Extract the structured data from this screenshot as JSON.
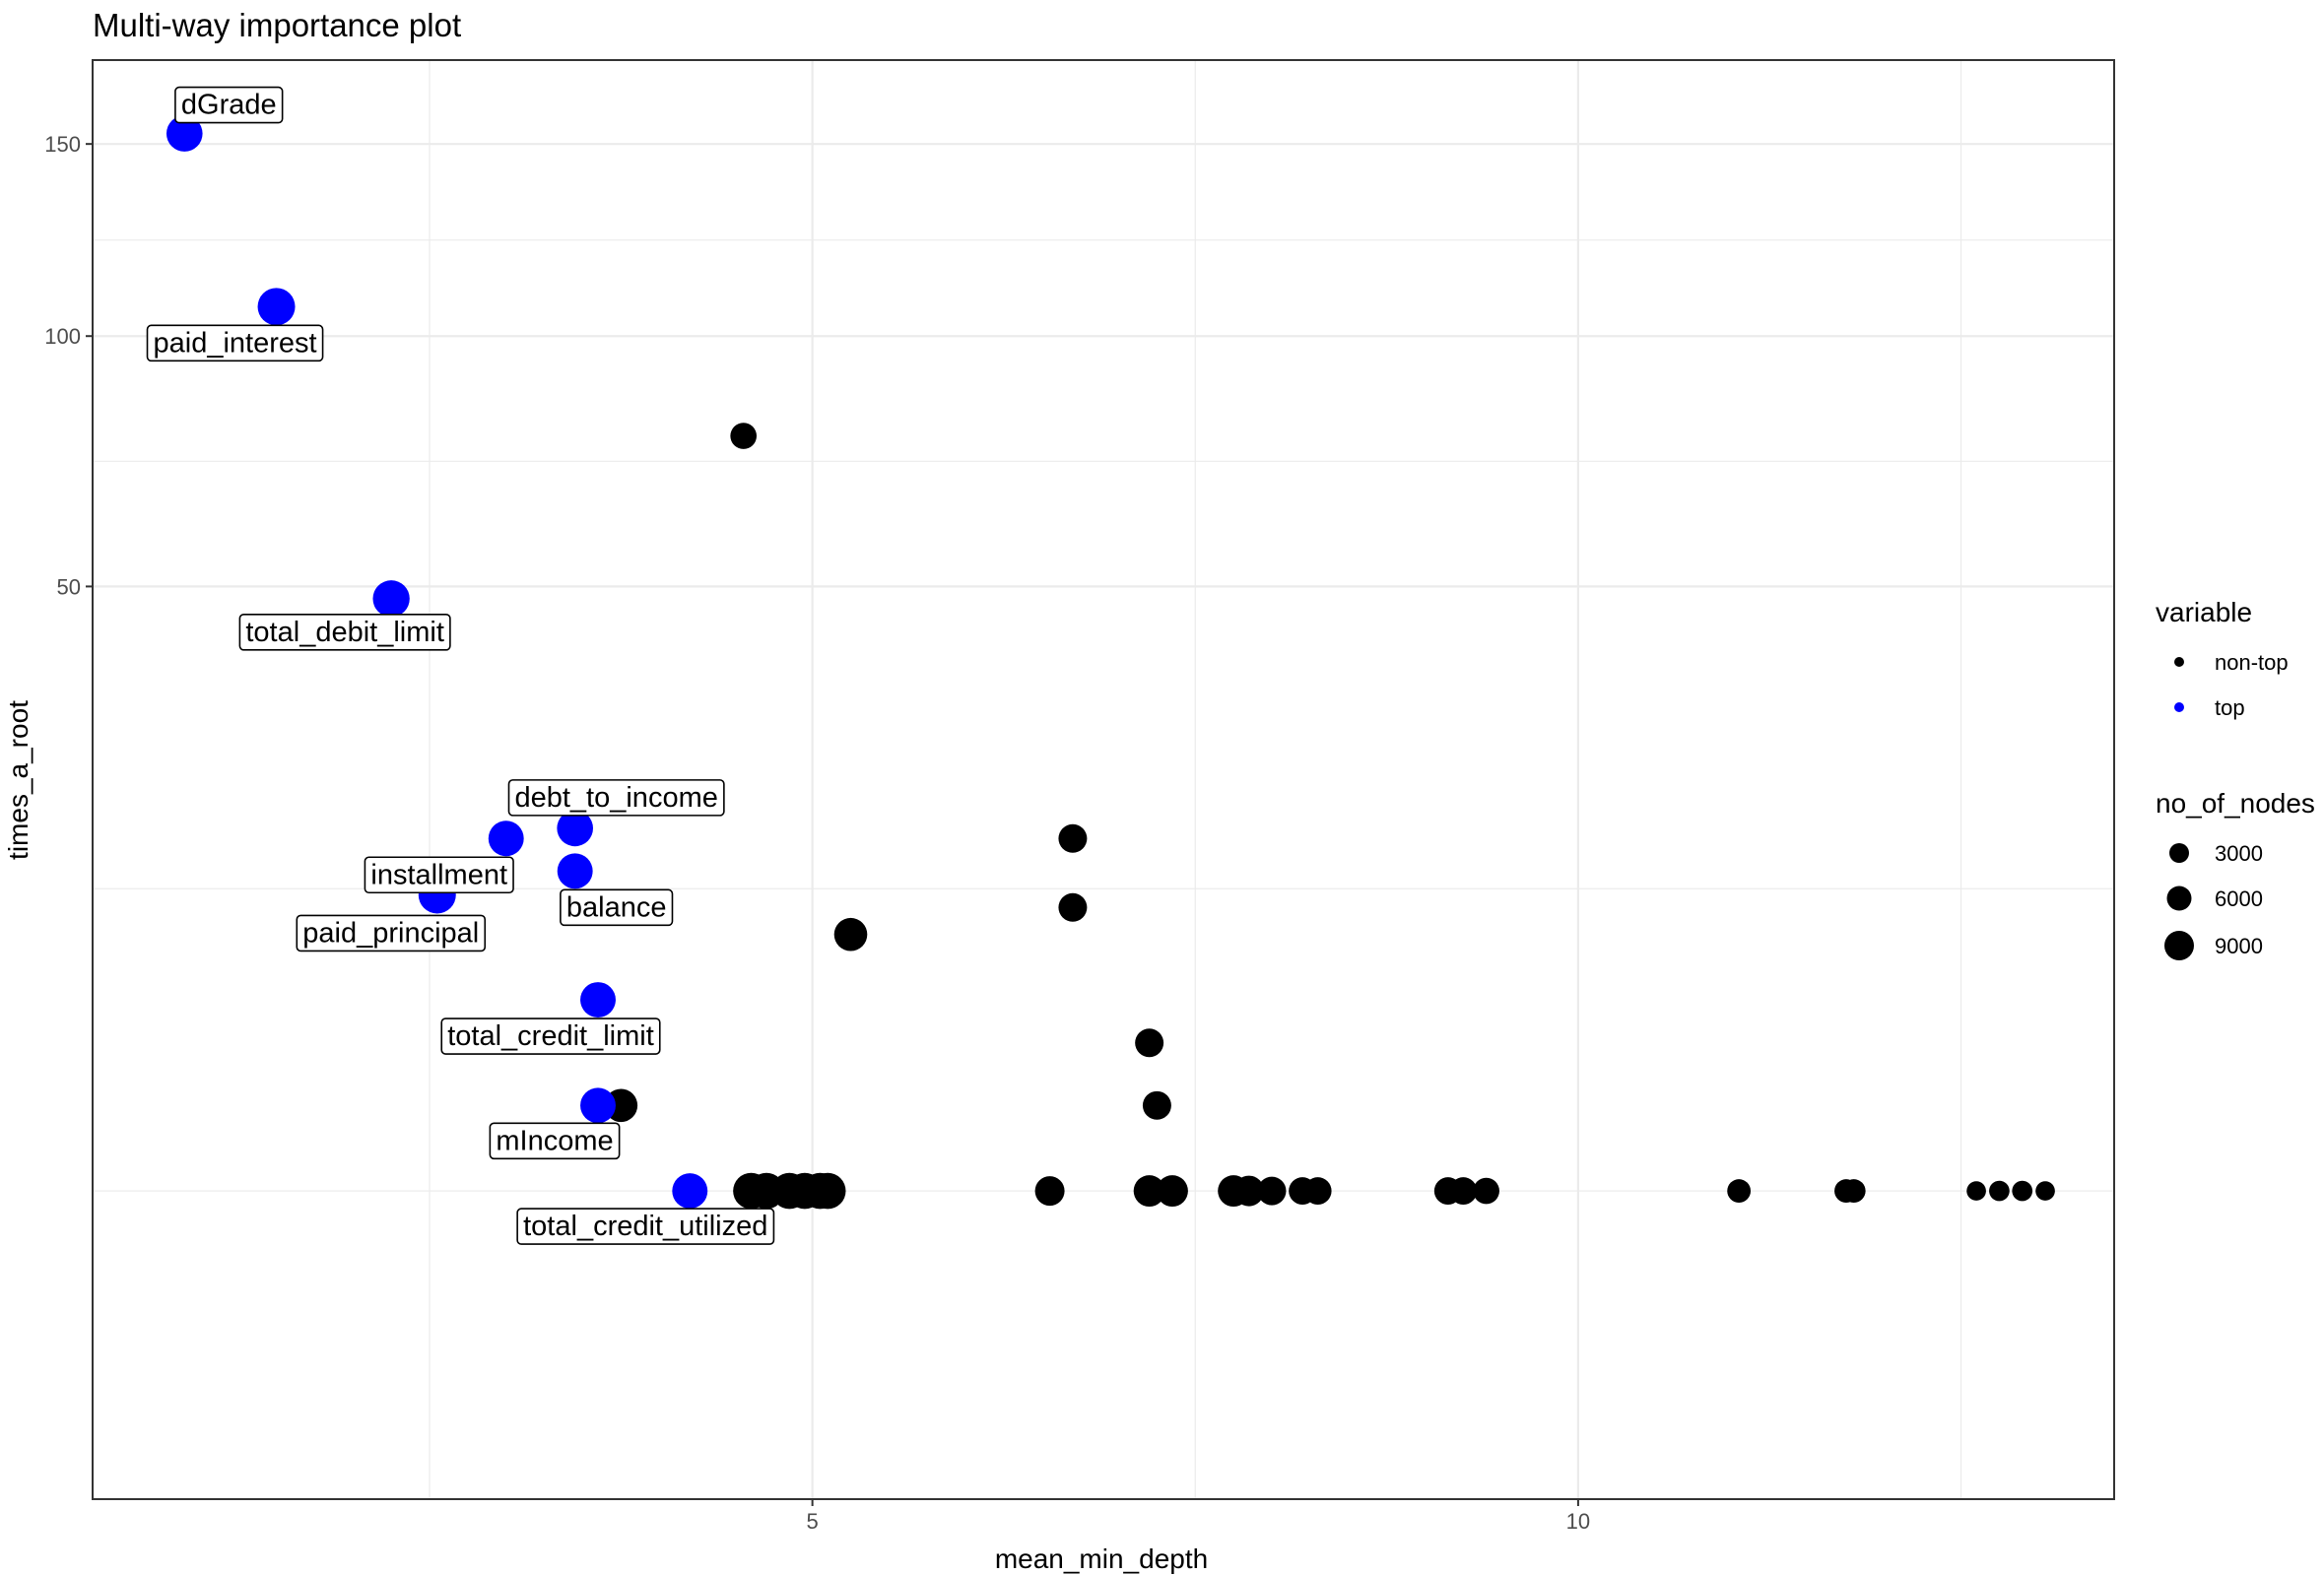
{
  "chart_data": {
    "type": "scatter",
    "title": "Multi-way importance plot",
    "xlabel": "mean_min_depth",
    "ylabel": "times_a_root",
    "x_ticks": [
      5,
      10
    ],
    "y_ticks": [
      50,
      100,
      150
    ],
    "xlim": [
      0.3,
      13.5
    ],
    "ylim": [
      -13,
      175
    ],
    "y_scale": "sqrt",
    "grid": true,
    "legend": {
      "position": "right",
      "color_title": "variable",
      "color_entries": [
        {
          "name": "non-top",
          "color": "#000000"
        },
        {
          "name": "top",
          "color": "#0000ff"
        }
      ],
      "size_title": "no_of_nodes",
      "size_entries": [
        3000,
        6000,
        9000
      ]
    },
    "points": [
      {
        "x": 0.9,
        "y": 153,
        "nodes": 8000,
        "group": "top",
        "label": "dGrade"
      },
      {
        "x": 1.5,
        "y": 107,
        "nodes": 9000,
        "group": "top",
        "label": "paid_interest"
      },
      {
        "x": 2.25,
        "y": 48,
        "nodes": 8500,
        "group": "top",
        "label": "total_debit_limit"
      },
      {
        "x": 3.45,
        "y": 18,
        "nodes": 8000,
        "group": "top",
        "label": "debt_to_income"
      },
      {
        "x": 3.0,
        "y": 17,
        "nodes": 7500,
        "group": "top",
        "label": "installment"
      },
      {
        "x": 3.45,
        "y": 14,
        "nodes": 7500,
        "group": "top",
        "label": "balance"
      },
      {
        "x": 2.55,
        "y": 12,
        "nodes": 9000,
        "group": "top",
        "label": "paid_principal"
      },
      {
        "x": 3.6,
        "y": 5,
        "nodes": 7500,
        "group": "top",
        "label": "total_credit_limit"
      },
      {
        "x": 3.6,
        "y": 1,
        "nodes": 7500,
        "group": "top",
        "label": "mIncome"
      },
      {
        "x": 4.2,
        "y": 0,
        "nodes": 7500,
        "group": "top",
        "label": "total_credit_utilized"
      },
      {
        "x": 4.55,
        "y": 78,
        "nodes": 2500,
        "group": "non-top"
      },
      {
        "x": 6.7,
        "y": 17,
        "nodes": 3500,
        "group": "non-top"
      },
      {
        "x": 6.7,
        "y": 11,
        "nodes": 3500,
        "group": "non-top"
      },
      {
        "x": 5.25,
        "y": 9,
        "nodes": 6000,
        "group": "non-top"
      },
      {
        "x": 7.2,
        "y": 3,
        "nodes": 3500,
        "group": "non-top"
      },
      {
        "x": 7.25,
        "y": 1,
        "nodes": 3500,
        "group": "non-top"
      },
      {
        "x": 3.75,
        "y": 1,
        "nodes": 6000,
        "group": "non-top"
      },
      {
        "x": 4.6,
        "y": 0,
        "nodes": 8000,
        "group": "non-top"
      },
      {
        "x": 4.7,
        "y": 0,
        "nodes": 8000,
        "group": "non-top"
      },
      {
        "x": 4.85,
        "y": 0,
        "nodes": 8000,
        "group": "non-top"
      },
      {
        "x": 4.95,
        "y": 0,
        "nodes": 8000,
        "group": "non-top"
      },
      {
        "x": 5.05,
        "y": 0,
        "nodes": 8000,
        "group": "non-top"
      },
      {
        "x": 5.1,
        "y": 0,
        "nodes": 8000,
        "group": "non-top"
      },
      {
        "x": 6.55,
        "y": 0,
        "nodes": 4000,
        "group": "non-top"
      },
      {
        "x": 7.2,
        "y": 0,
        "nodes": 5000,
        "group": "non-top"
      },
      {
        "x": 7.35,
        "y": 0,
        "nodes": 5000,
        "group": "non-top"
      },
      {
        "x": 7.75,
        "y": 0,
        "nodes": 5000,
        "group": "non-top"
      },
      {
        "x": 7.85,
        "y": 0,
        "nodes": 4500,
        "group": "non-top"
      },
      {
        "x": 8.0,
        "y": 0,
        "nodes": 3500,
        "group": "non-top"
      },
      {
        "x": 8.2,
        "y": 0,
        "nodes": 3000,
        "group": "non-top"
      },
      {
        "x": 8.3,
        "y": 0,
        "nodes": 3000,
        "group": "non-top"
      },
      {
        "x": 9.15,
        "y": 0,
        "nodes": 3000,
        "group": "non-top"
      },
      {
        "x": 9.25,
        "y": 0,
        "nodes": 3000,
        "group": "non-top"
      },
      {
        "x": 9.4,
        "y": 0,
        "nodes": 2500,
        "group": "non-top"
      },
      {
        "x": 11.05,
        "y": 0,
        "nodes": 1500,
        "group": "non-top"
      },
      {
        "x": 11.75,
        "y": 0,
        "nodes": 1500,
        "group": "non-top"
      },
      {
        "x": 11.8,
        "y": 0,
        "nodes": 1500,
        "group": "non-top"
      },
      {
        "x": 12.6,
        "y": 0,
        "nodes": 500,
        "group": "non-top"
      },
      {
        "x": 12.75,
        "y": 0,
        "nodes": 700,
        "group": "non-top"
      },
      {
        "x": 12.9,
        "y": 0,
        "nodes": 700,
        "group": "non-top"
      },
      {
        "x": 13.05,
        "y": 0,
        "nodes": 500,
        "group": "non-top"
      }
    ]
  }
}
